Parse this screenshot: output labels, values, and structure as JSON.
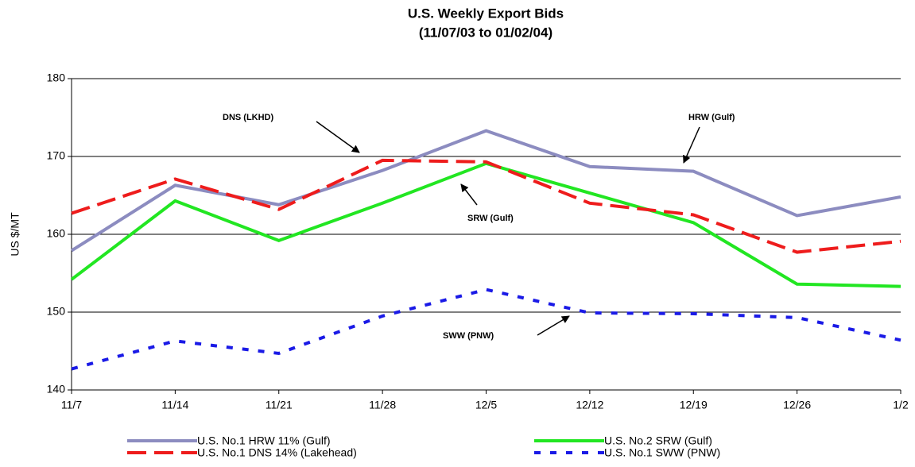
{
  "chart_data": {
    "type": "line",
    "title": "U.S.  Weekly Export Bids",
    "subtitle": "(11/07/03 to 01/02/04)",
    "y_label": "US $/MT",
    "categories": [
      "11/7",
      "11/14",
      "11/21",
      "11/28",
      "12/5",
      "12/12",
      "12/19",
      "12/26",
      "1/2"
    ],
    "series": [
      {
        "name": "U.S. No.1 HRW 11% (Gulf)",
        "color": "#8c8cc0",
        "dash": "solid",
        "values": [
          157.9,
          166.3,
          163.8,
          168.2,
          173.3,
          168.7,
          168.1,
          162.4,
          164.8
        ]
      },
      {
        "name": "U.S. No.2 SRW (Gulf)",
        "color": "#22e622",
        "dash": "solid",
        "values": [
          154.2,
          164.3,
          159.2,
          164.0,
          169.1,
          165.3,
          161.5,
          153.6,
          153.3
        ]
      },
      {
        "name": "U.S. No.1 DNS 14% (Lakehead)",
        "color": "#ee1c1c",
        "dash": "dashed",
        "values": [
          162.7,
          167.1,
          163.2,
          169.5,
          169.3,
          164.0,
          162.5,
          157.7,
          159.1
        ]
      },
      {
        "name": "U.S. No.1 SWW (PNW)",
        "color": "#1a1ae6",
        "dash": "dotted",
        "values": [
          142.7,
          146.3,
          144.7,
          149.5,
          152.9,
          149.9,
          149.8,
          149.3,
          146.4
        ]
      }
    ],
    "ylim": [
      140,
      180
    ],
    "yticks": [
      140,
      150,
      160,
      170,
      180
    ],
    "grid": true,
    "annotations": [
      "DNS (LKHD)",
      "HRW (Gulf)",
      "SRW (Gulf)",
      "SWW (PNW)"
    ],
    "legend": "bottom"
  }
}
